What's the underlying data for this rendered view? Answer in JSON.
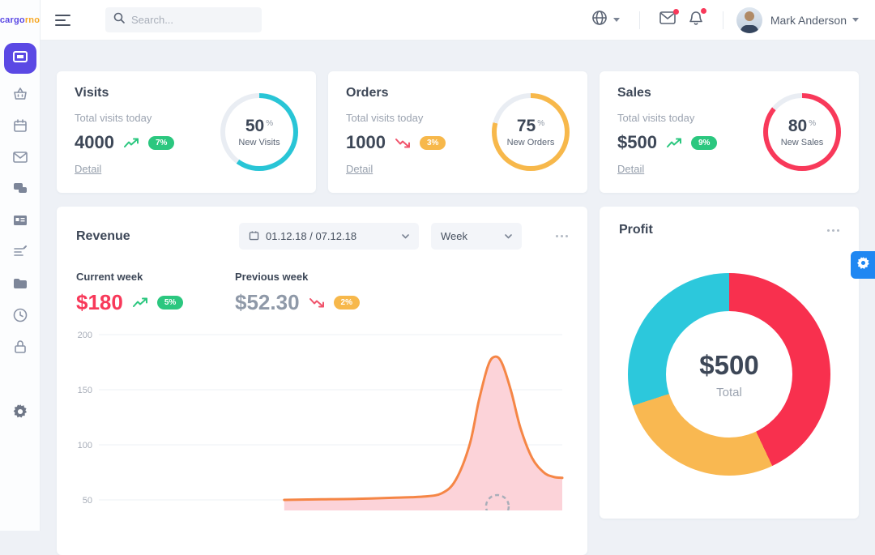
{
  "brand": {
    "text_primary": "cargo",
    "text_secondary": "rno"
  },
  "header": {
    "search_placeholder": "Search...",
    "user_name": "Mark Anderson"
  },
  "sidebar": {
    "active_item": "dashboard",
    "items": [
      "dashboard",
      "basket",
      "calendar",
      "mail",
      "chat",
      "id-card",
      "forms",
      "folder",
      "clock",
      "lock",
      "settings"
    ]
  },
  "stat_cards": [
    {
      "title": "Visits",
      "subtitle": "Total visits today",
      "value": "4000",
      "trend": "up",
      "badge": {
        "text": "7%",
        "color": "#2bc77f"
      },
      "link": "Detail",
      "ring": {
        "percent": "50",
        "unit": "%",
        "label": "New Visits",
        "color": "#29c5d6",
        "arc_percent": 60
      }
    },
    {
      "title": "Orders",
      "subtitle": "Total visits today",
      "value": "1000",
      "trend": "down",
      "badge": {
        "text": "3%",
        "color": "#f7b84b"
      },
      "link": "Detail",
      "ring": {
        "percent": "75",
        "unit": "%",
        "label": "New Orders",
        "color": "#f7b84b",
        "arc_percent": 79
      }
    },
    {
      "title": "Sales",
      "subtitle": "Total visits today",
      "value": "$500",
      "trend": "up",
      "badge": {
        "text": "9%",
        "color": "#2bc77f"
      },
      "link": "Detail",
      "ring": {
        "percent": "80",
        "unit": "%",
        "label": "New Sales",
        "color": "#f8395a",
        "arc_percent": 86
      }
    }
  ],
  "revenue": {
    "title": "Revenue",
    "date_range": "01.12.18 / 07.12.18",
    "period": "Week",
    "current": {
      "label": "Current week",
      "value": "$180",
      "value_color": "#f8395a",
      "trend": "up",
      "badge": {
        "text": "5%",
        "color": "#2bc77f"
      }
    },
    "previous": {
      "label": "Previous week",
      "value": "$52.30",
      "value_color": "#8f99a8",
      "trend": "down",
      "badge": {
        "text": "2%",
        "color": "#f7b84b"
      }
    }
  },
  "profit": {
    "title": "Profit",
    "center_value": "$500",
    "center_label": "Total"
  },
  "chart_data": [
    {
      "type": "area",
      "title": "Revenue weekly trend",
      "y_ticks": [
        "200",
        "150",
        "100",
        "50"
      ],
      "ylim_visible": [
        50,
        200
      ],
      "x_axis_visible": false,
      "grid": true,
      "legend": "none",
      "series": [
        {
          "name": "Revenue",
          "line_color": "#f58646",
          "fill_color": "#fcd3d9",
          "points": [
            [
              40,
              50
            ],
            [
              48,
              50.5
            ],
            [
              56,
              51
            ],
            [
              64,
              52
            ],
            [
              70,
              53
            ],
            [
              74,
              56
            ],
            [
              77,
              68
            ],
            [
              80,
              100
            ],
            [
              82,
              140
            ],
            [
              84,
              172
            ],
            [
              85.5,
              180
            ],
            [
              87,
              174
            ],
            [
              89,
              148
            ],
            [
              91,
              115
            ],
            [
              93.5,
              88
            ],
            [
              96,
              75
            ],
            [
              98,
              71
            ],
            [
              100,
              70
            ]
          ]
        }
      ],
      "annotations": [
        {
          "type": "dashed-circle",
          "x_percent": 86
        }
      ]
    },
    {
      "type": "donut",
      "title": "Profit",
      "center_value": "$500",
      "center_label": "Total",
      "segments": [
        {
          "color": "#f8304e",
          "percent": 43
        },
        {
          "color": "#f9b851",
          "percent": 27
        },
        {
          "color": "#2cc8dc",
          "percent": 30
        }
      ]
    }
  ]
}
